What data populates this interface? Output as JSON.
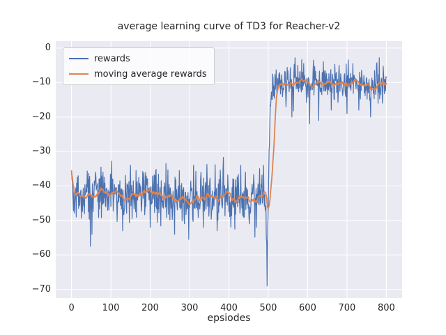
{
  "figure": {
    "title": "average learning curve of TD3 for Reacher-v2",
    "xlabel": "epsiodes",
    "background_color": "#ffffff",
    "axes_background_color": "#eaeaf2",
    "grid_color": "#ffffff",
    "text_color": "#262626"
  },
  "legend": {
    "position": "upper left",
    "entries": [
      {
        "label": "rewards",
        "color": "#4c72b0"
      },
      {
        "label": "moving average rewards",
        "color": "#dd8452"
      }
    ]
  },
  "chart_data": {
    "type": "line",
    "title": "average learning curve of TD3 for Reacher-v2",
    "xlabel": "epsiodes",
    "ylabel": "",
    "xlim": [
      -40,
      840
    ],
    "ylim": [
      -72.5,
      2
    ],
    "xticks": [
      0,
      100,
      200,
      300,
      400,
      500,
      600,
      700,
      800
    ],
    "yticks": [
      0,
      -10,
      -20,
      -30,
      -40,
      -50,
      -60,
      -70
    ],
    "grid": true,
    "legend_position": "upper left",
    "summary": {
      "episodes": 801,
      "transition_episode": 500,
      "phase1_mean_reward": -43,
      "phase2_mean_reward": -10.5,
      "min_reward": -69,
      "max_reward": -3,
      "description": "Noisy episode rewards hover near -43 for episodes 0-500 with a deep dip to -69 just before episode 500, then jump to about -10 for episodes 500-800. Moving average follows smoothly."
    },
    "series": [
      {
        "name": "rewards",
        "color": "#4c72b0",
        "line_width": 1.2,
        "generation": {
          "seed": 42,
          "x_start": 0,
          "x_end": 800,
          "step": 1,
          "mean_anchors": [
            [
              0,
              -39
            ],
            [
              8,
              -43
            ],
            [
              60,
              -42
            ],
            [
              120,
              -43.5
            ],
            [
              180,
              -42
            ],
            [
              240,
              -43
            ],
            [
              300,
              -44
            ],
            [
              360,
              -42.5
            ],
            [
              420,
              -43.5
            ],
            [
              460,
              -42.5
            ],
            [
              488,
              -43
            ],
            [
              494,
              -46
            ],
            [
              496,
              -58
            ],
            [
              497,
              -69
            ],
            [
              498,
              -57
            ],
            [
              500,
              -44
            ],
            [
              502,
              -30
            ],
            [
              505,
              -17
            ],
            [
              510,
              -12
            ],
            [
              520,
              -10.5
            ],
            [
              600,
              -10
            ],
            [
              700,
              -10.5
            ],
            [
              800,
              -10
            ]
          ],
          "noise_std_anchors": [
            [
              0,
              3.4
            ],
            [
              480,
              3.4
            ],
            [
              494,
              2.0
            ],
            [
              497,
              0.5
            ],
            [
              503,
              1.5
            ],
            [
              512,
              2.4
            ],
            [
              800,
              2.4
            ]
          ],
          "outlier_prob": 0.06,
          "outlier_scale": 2.2,
          "clamp": [
            -69.5,
            -2.8
          ],
          "spikes": [
            [
              48,
              -57.5
            ],
            [
              52,
              -54
            ],
            [
              75,
              -34.5
            ],
            [
              130,
              -53
            ],
            [
              150,
              -34
            ],
            [
              200,
              -52
            ],
            [
              240,
              -33.5
            ],
            [
              262,
              -54
            ],
            [
              298,
              -55.5
            ],
            [
              310,
              -34
            ],
            [
              335,
              -52
            ],
            [
              370,
              -53
            ],
            [
              385,
              -35
            ],
            [
              415,
              -52.5
            ],
            [
              430,
              -34
            ],
            [
              452,
              -51
            ],
            [
              470,
              -52
            ],
            [
              478,
              -35
            ],
            [
              497,
              -69
            ],
            [
              545,
              -17
            ],
            [
              560,
              -20
            ],
            [
              575,
              -5
            ],
            [
              590,
              -4.5
            ],
            [
              605,
              -22
            ],
            [
              615,
              -3.5
            ],
            [
              628,
              -21
            ],
            [
              640,
              -4
            ],
            [
              660,
              -18
            ],
            [
              680,
              -5
            ],
            [
              700,
              -19
            ],
            [
              715,
              -4.5
            ],
            [
              730,
              -18
            ],
            [
              760,
              -20
            ],
            [
              775,
              -5
            ],
            [
              790,
              -16
            ]
          ]
        }
      },
      {
        "name": "moving average rewards",
        "color": "#dd8452",
        "line_width": 1.8,
        "derived": {
          "from": "rewards",
          "method": "moving_average",
          "window": 20
        }
      }
    ]
  }
}
